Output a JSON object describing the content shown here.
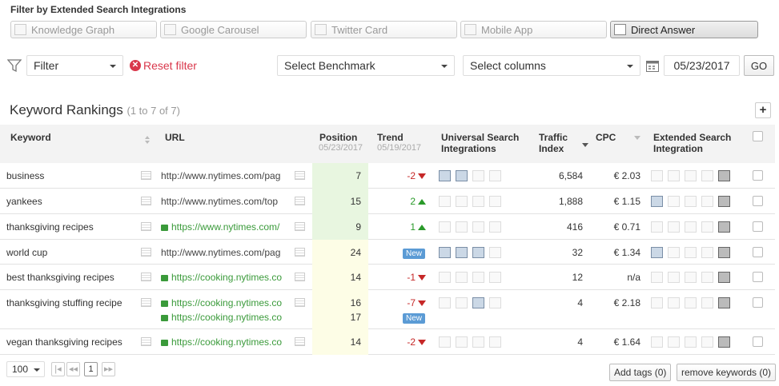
{
  "filter_title": "Filter by Extended Search Integrations",
  "integrations": [
    {
      "label": "Knowledge Graph",
      "active": false
    },
    {
      "label": "Google Carousel",
      "active": false
    },
    {
      "label": "Twitter Card",
      "active": false
    },
    {
      "label": "Mobile App",
      "active": false
    },
    {
      "label": "Direct Answer",
      "active": true
    }
  ],
  "toolbar": {
    "filter_label": "Filter",
    "reset_label": "Reset filter",
    "benchmark_label": "Select Benchmark",
    "columns_label": "Select columns",
    "date_value": "05/23/2017",
    "go_label": "GO"
  },
  "section": {
    "title": "Keyword Rankings",
    "count": "(1 to 7 of 7)",
    "add_label": "+"
  },
  "columns": {
    "keyword": "Keyword",
    "url": "URL",
    "position": "Position",
    "position_date": "05/23/2017",
    "trend": "Trend",
    "trend_date": "05/19/2017",
    "universal": "Universal Search Integrations",
    "traffic": "Traffic Index",
    "cpc": "CPC",
    "extended": "Extended Search Integration"
  },
  "rows": [
    {
      "keyword": "business",
      "url": "http://www.nytimes.com/pag",
      "secure": false,
      "position": "7",
      "trend": "-2",
      "trend_dir": "down",
      "traffic": "6,584",
      "cpc": "€ 2.03"
    },
    {
      "keyword": "yankees",
      "url": "http://www.nytimes.com/top",
      "secure": false,
      "position": "15",
      "trend": "2",
      "trend_dir": "up",
      "traffic": "1,888",
      "cpc": "€ 1.15"
    },
    {
      "keyword": "thanksgiving recipes",
      "url": "https://www.nytimes.com/",
      "secure": true,
      "position": "9",
      "trend": "1",
      "trend_dir": "up",
      "traffic": "416",
      "cpc": "€ 0.71"
    },
    {
      "keyword": "world cup",
      "url": "http://www.nytimes.com/pag",
      "secure": false,
      "position": "24",
      "trend": "New",
      "trend_dir": "new",
      "traffic": "32",
      "cpc": "€ 1.34"
    },
    {
      "keyword": "best thanksgiving recipes",
      "url": "https://cooking.nytimes.co",
      "secure": true,
      "position": "14",
      "trend": "-1",
      "trend_dir": "down",
      "traffic": "12",
      "cpc": "n/a"
    },
    {
      "keyword": "thanksgiving stuffing recipe",
      "url": "https://cooking.nytimes.co",
      "url2": "https://cooking.nytimes.co",
      "secure": true,
      "position": "16",
      "position2": "17",
      "trend": "-7",
      "trend_dir": "down",
      "trend2": "New",
      "traffic": "4",
      "cpc": "€ 2.18"
    },
    {
      "keyword": "vegan thanksgiving recipes",
      "url": "https://cooking.nytimes.co",
      "secure": true,
      "position": "14",
      "trend": "-2",
      "trend_dir": "down",
      "traffic": "4",
      "cpc": "€ 1.64"
    }
  ],
  "footer": {
    "page_size": "100",
    "current_page": "1",
    "add_tags": "Add tags (0)",
    "remove_keywords": "remove keywords (0)"
  }
}
